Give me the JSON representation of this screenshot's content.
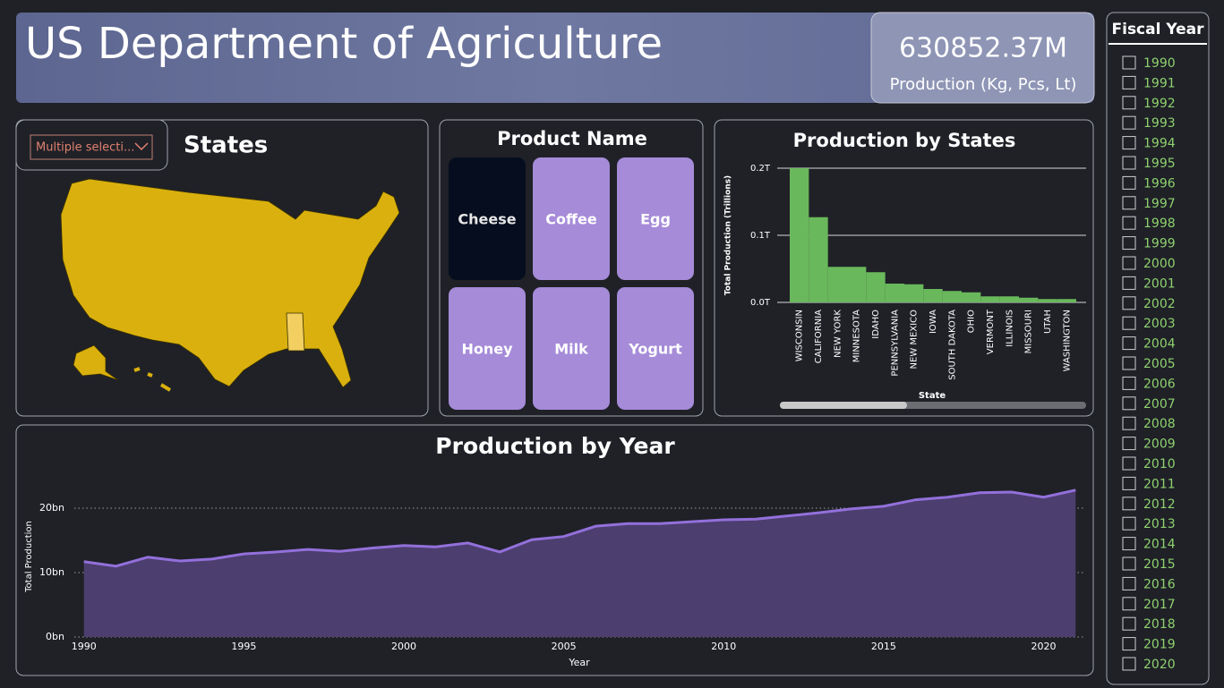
{
  "header": {
    "title": "US Department of Agriculture",
    "kpi_value": "630852.37M",
    "kpi_label": "Production (Kg, Pcs, Lt)"
  },
  "states": {
    "title": "States",
    "dropdown": "Multiple selecti..."
  },
  "product_name": {
    "title": "Product Name",
    "options": [
      "Cheese",
      "Coffee",
      "Egg",
      "Honey",
      "Milk",
      "Yogurt"
    ],
    "selected": "Cheese"
  },
  "chart_data": [
    {
      "type": "bar",
      "title": "Production by States",
      "x_label": "State",
      "y_label": "Total Production (Trillions)",
      "categories": [
        "WISCONSIN",
        "CALIFORNIA",
        "NEW YORK",
        "MINNESOTA",
        "IDAHO",
        "PENNSYLVANIA",
        "NEW MEXICO",
        "IOWA",
        "SOUTH DAKOTA",
        "OHIO",
        "VERMONT",
        "ILLINOIS",
        "MISSOURI",
        "UTAH",
        "WASHINGTON"
      ],
      "values": [
        0.2,
        0.127,
        0.053,
        0.053,
        0.045,
        0.028,
        0.027,
        0.02,
        0.017,
        0.015,
        0.009,
        0.009,
        0.007,
        0.005,
        0.005
      ],
      "color": "#6ab85c",
      "ylim": [
        0,
        0.2
      ],
      "yticks": [
        {
          "value": 0,
          "label": "0.0T"
        },
        {
          "value": 0.1,
          "label": "0.1T"
        },
        {
          "value": 0.2,
          "label": "0.2T"
        }
      ],
      "grid": true
    },
    {
      "type": "area",
      "title": "Production by Year",
      "x_label": "Year",
      "y_label": "Total Production",
      "x": [
        1990,
        1991,
        1992,
        1993,
        1994,
        1995,
        1996,
        1997,
        1998,
        1999,
        2000,
        2001,
        2002,
        2003,
        2004,
        2005,
        2006,
        2007,
        2008,
        2009,
        2010,
        2011,
        2012,
        2013,
        2014,
        2015,
        2016,
        2017,
        2018,
        2019,
        2020,
        2021
      ],
      "values": [
        11.7,
        11.0,
        12.4,
        11.8,
        12.1,
        12.9,
        13.2,
        13.6,
        13.3,
        13.8,
        14.2,
        14.0,
        14.6,
        13.2,
        15.1,
        15.6,
        17.2,
        17.6,
        17.6,
        17.9,
        18.2,
        18.3,
        18.8,
        19.3,
        19.9,
        20.3,
        21.3,
        21.7,
        22.4,
        22.5,
        21.7,
        22.8
      ],
      "color": "#9370db",
      "fill": "#4c3e6e",
      "xlim": [
        1989.7,
        2021.3
      ],
      "ylim": [
        0,
        25
      ],
      "xticks": [
        1990,
        1995,
        2000,
        2005,
        2010,
        2015,
        2020
      ],
      "yticks": [
        {
          "value": 0,
          "label": "0bn"
        },
        {
          "value": 10,
          "label": "10bn"
        },
        {
          "value": 20,
          "label": "20bn"
        }
      ],
      "grid": true
    }
  ],
  "fiscal_year": {
    "title": "Fiscal Year",
    "options": [
      1990,
      1991,
      1992,
      1993,
      1994,
      1995,
      1996,
      1997,
      1998,
      1999,
      2000,
      2001,
      2002,
      2003,
      2004,
      2005,
      2006,
      2007,
      2008,
      2009,
      2010,
      2011,
      2012,
      2013,
      2014,
      2015,
      2016,
      2017,
      2018,
      2019,
      2020
    ]
  }
}
